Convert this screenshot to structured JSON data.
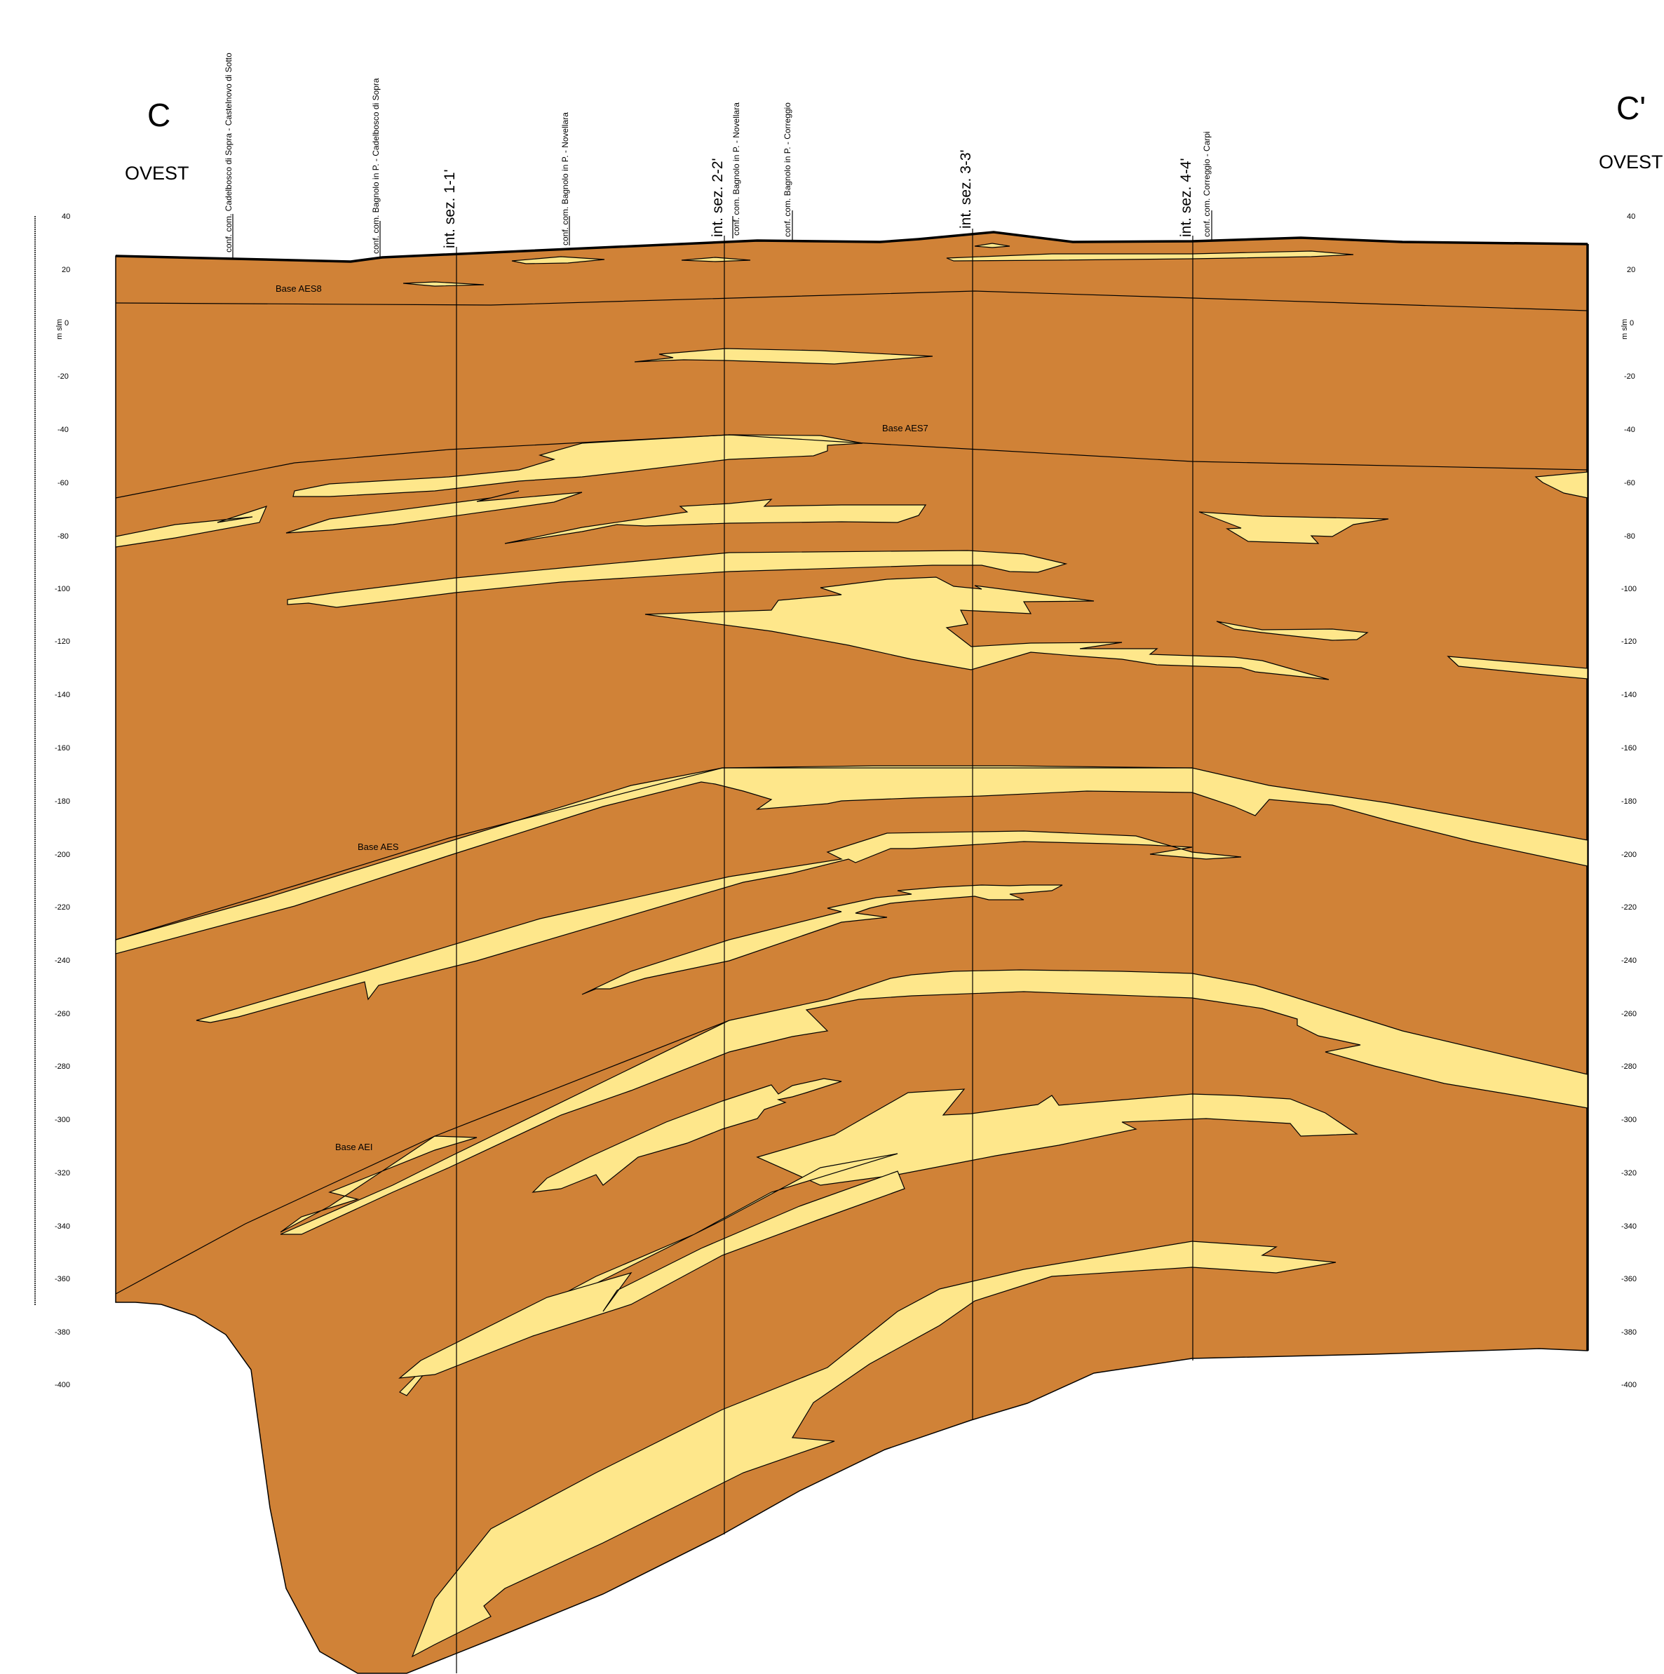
{
  "section": {
    "left_letter": "C",
    "left_direction": "OVEST",
    "right_letter": "C'",
    "right_direction": "OVEST"
  },
  "axis": {
    "unit": "m slm",
    "ticks": [
      "40",
      "20",
      "0",
      "-20",
      "-40",
      "-60",
      "-80",
      "-100",
      "-120",
      "-140",
      "-160",
      "-180",
      "-200",
      "-220",
      "-240",
      "-260",
      "-280",
      "-300",
      "-320",
      "-340",
      "-360",
      "-380",
      "-400"
    ]
  },
  "boundaries": {
    "names": [
      "Base AES8",
      "Base AES7",
      "Base AES",
      "Base AEI"
    ]
  },
  "boundary_labels": {
    "aes8": "Base AES8",
    "aes7": "Base AES7",
    "aes": "Base AES",
    "aei": "Base AEI"
  },
  "boundaries_of_wells": {
    "w1": "conf. com. Cadelbosco di Sopra - Castelnovo di Sotto",
    "w2": "conf. com. Bagnolo in P. - Cadelbosco di Sopra",
    "w3": "conf. com. Bagnolo in P. - Novellara",
    "w4": "conf. com. Bagnolo in P. - Novellara",
    "w5": "conf. com. Bagnolo in P. - Correggio",
    "w6": "conf. com. Correggio - Carpi"
  },
  "intersections": {
    "i1": "int. sez. 1-1'",
    "i2": "int. sez. 2-2'",
    "i3": "int. sez. 3-3'",
    "i4": "int. sez. 4-4'"
  },
  "colors": {
    "clay": "#D08237",
    "sand": "#FEE78B",
    "line": "#000000"
  }
}
